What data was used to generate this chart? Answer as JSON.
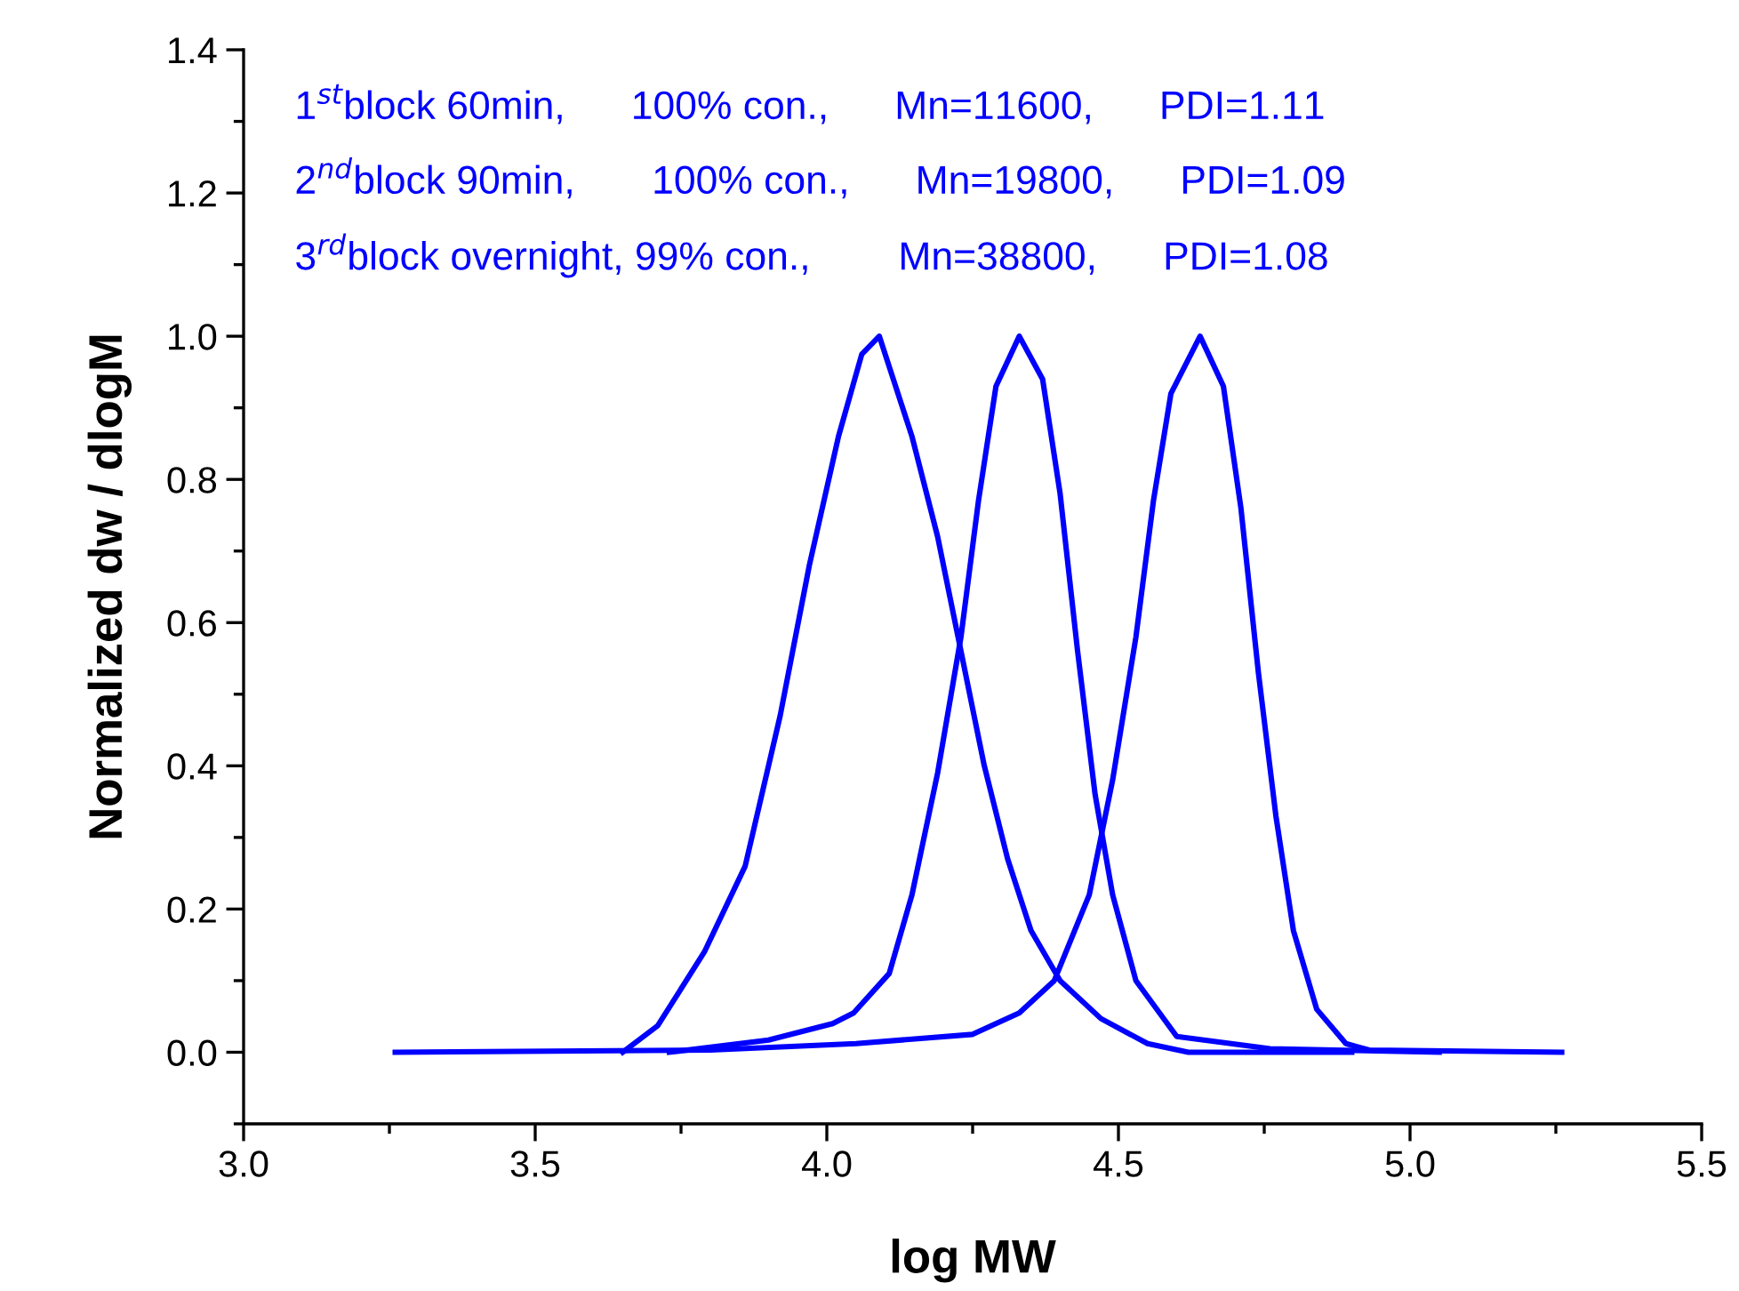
{
  "chart_data": {
    "type": "line",
    "xlabel": "log MW",
    "ylabel": "Normalized dw / dlogM",
    "annotations": [
      "1$^{st}$block 60min,      100% con.,      Mn=11600,      PDI=1.11",
      "2$^{nd}$block 90min,       100% con.,      Mn=19800,      PDI=1.09",
      "3$^{rd}$block overnight, 99% con.,        Mn=38800,      PDI=1.08"
    ],
    "series": [
      {
        "color": "#0000ff",
        "x": [
          3.65,
          3.71,
          3.79,
          3.86,
          3.92,
          3.97,
          4.02,
          4.06,
          4.09,
          4.146,
          4.19,
          4.23,
          4.27,
          4.31,
          4.35,
          4.4,
          4.47,
          4.55,
          4.62,
          4.9
        ],
        "values": [
          0.0,
          0.037,
          0.14,
          0.26,
          0.47,
          0.68,
          0.86,
          0.975,
          1.0,
          0.86,
          0.72,
          0.56,
          0.4,
          0.27,
          0.17,
          0.1,
          0.047,
          0.012,
          0.0,
          0.0
        ]
      },
      {
        "color": "#0000ff",
        "x": [
          3.73,
          3.9,
          4.01,
          4.046,
          4.107,
          4.146,
          4.19,
          4.23,
          4.26,
          4.29,
          4.33,
          4.37,
          4.4,
          4.43,
          4.46,
          4.49,
          4.53,
          4.6,
          4.76,
          5.05
        ],
        "values": [
          0.0,
          0.017,
          0.04,
          0.055,
          0.11,
          0.22,
          0.39,
          0.58,
          0.77,
          0.93,
          1.0,
          0.94,
          0.78,
          0.56,
          0.36,
          0.22,
          0.1,
          0.022,
          0.005,
          0.0
        ]
      },
      {
        "color": "#0000ff",
        "x": [
          3.26,
          3.8,
          4.05,
          4.25,
          4.33,
          4.39,
          4.45,
          4.49,
          4.53,
          4.56,
          4.59,
          4.64,
          4.68,
          4.71,
          4.74,
          4.77,
          4.8,
          4.84,
          4.89,
          4.93,
          5.26
        ],
        "values": [
          0.0,
          0.003,
          0.012,
          0.025,
          0.055,
          0.1,
          0.22,
          0.38,
          0.58,
          0.77,
          0.92,
          1.0,
          0.93,
          0.76,
          0.53,
          0.33,
          0.17,
          0.06,
          0.012,
          0.003,
          0.0
        ]
      }
    ],
    "xlim": [
      3.0,
      5.5
    ],
    "xticks": [
      {
        "value": 3.0,
        "label": "3.0"
      },
      {
        "value": 3.5,
        "label": "3.5"
      },
      {
        "value": 4.0,
        "label": "4.0"
      },
      {
        "value": 4.5,
        "label": "4.5"
      },
      {
        "value": 5.0,
        "label": "5.0"
      },
      {
        "value": 5.5,
        "label": "5.5"
      }
    ],
    "ylim": [
      -0.1,
      1.4
    ],
    "yticks": [
      {
        "value": 0.0,
        "label": "0.0"
      },
      0.2,
      0.4,
      0.6,
      0.8,
      {
        "value": 1.0,
        "label": "1.0"
      },
      1.2,
      1.4
    ],
    "grid": false,
    "legend": false,
    "marker": "none",
    "line_style": "solid"
  }
}
